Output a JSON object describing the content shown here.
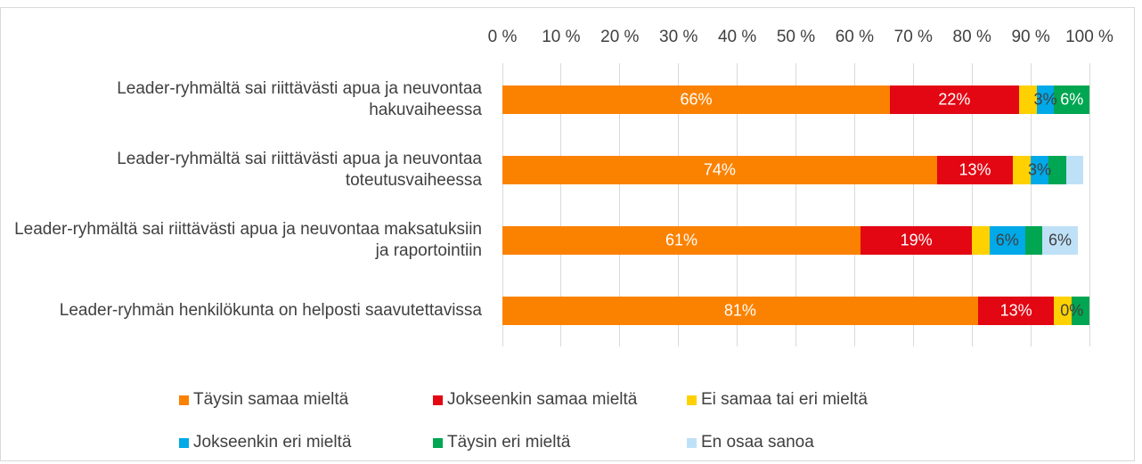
{
  "chart_data": {
    "type": "stacked-bar-horizontal",
    "categories": [
      "Leader-ryhmältä sai riittävästi apua ja neuvontaa hakuvaiheessa",
      "Leader-ryhmältä sai riittävästi apua ja neuvontaa toteutusvaiheessa",
      "Leader-ryhmältä sai riittävästi apua ja neuvontaa maksatuksiin ja raportointiin",
      "Leader-ryhmän henkilökunta on helposti saavutettavissa"
    ],
    "series": [
      {
        "name": "Täysin samaa mieltä",
        "color": "#fb8200",
        "values": [
          66,
          74,
          61,
          81
        ],
        "value_labels": [
          "66%",
          "74%",
          "61%",
          "81%"
        ]
      },
      {
        "name": "Jokseenkin samaa mieltä",
        "color": "#e30613",
        "values": [
          22,
          13,
          19,
          13
        ],
        "value_labels": [
          "22%",
          "13%",
          "19%",
          "13%"
        ]
      },
      {
        "name": "Ei samaa tai eri mieltä",
        "color": "#ffd100",
        "values": [
          3,
          3,
          3,
          3
        ],
        "value_labels": [
          null,
          null,
          null,
          null
        ]
      },
      {
        "name": "Jokseenkin eri mieltä",
        "color": "#00a9e8",
        "values": [
          3,
          3,
          6,
          0
        ],
        "value_labels": [
          "3%",
          "3%",
          "6%",
          "0%"
        ]
      },
      {
        "name": "Täysin eri mieltä",
        "color": "#00a651",
        "values": [
          6,
          3,
          3,
          3
        ],
        "value_labels": [
          "6%",
          null,
          null,
          null
        ]
      },
      {
        "name": "En osaa sanoa",
        "color": "#bfe1f7",
        "values": [
          0,
          3,
          6,
          0
        ],
        "value_labels": [
          null,
          null,
          "6%",
          null
        ]
      }
    ],
    "xlim": [
      0,
      100
    ],
    "xticks": [
      {
        "value": 0,
        "label": "0 %"
      },
      {
        "value": 10,
        "label": "10 %"
      },
      {
        "value": 20,
        "label": "20 %"
      },
      {
        "value": 30,
        "label": "30 %"
      },
      {
        "value": 40,
        "label": "40 %"
      },
      {
        "value": 50,
        "label": "50 %"
      },
      {
        "value": 60,
        "label": "60 %"
      },
      {
        "value": 70,
        "label": "70 %"
      },
      {
        "value": 80,
        "label": "80 %"
      },
      {
        "value": 90,
        "label": "90 %"
      },
      {
        "value": 100,
        "label": "100 %"
      }
    ],
    "grid": true,
    "legend": "bottom"
  }
}
